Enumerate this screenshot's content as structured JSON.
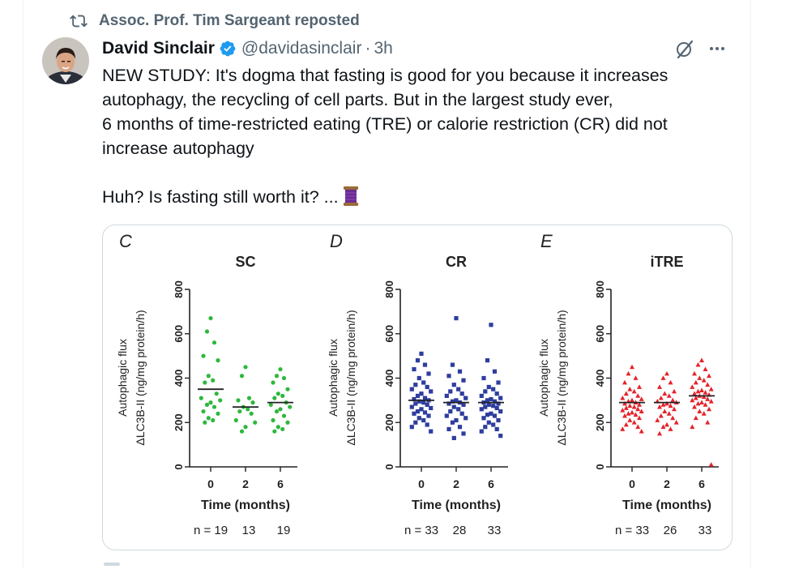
{
  "repost_label": "Assoc. Prof. Tim Sargeant reposted",
  "author": {
    "name": "David Sinclair",
    "handle": "@davidasinclair",
    "separator": "·",
    "time": "3h"
  },
  "tweet": {
    "text": "NEW STUDY: It's dogma that fasting is good for you because it increases autophagy, the recycling of cell parts. But in the largest study ever,\n6 months of time-restricted eating (TRE) or calorie restriction (CR) did not increase autophagy\n\nHuh? Is fasting still worth it? ..."
  },
  "icons": {
    "repost": "repost-icon",
    "verified": "verified-badge-icon",
    "grok": "grok-icon",
    "more": "more-icon",
    "thread": "spool-icon"
  },
  "colors": {
    "verified": "#1d9bf0",
    "sc": "#2db83d",
    "cr": "#2e3d9e",
    "itre": "#e5232b"
  },
  "chart_data": [
    {
      "panel": "C",
      "title": "SC",
      "type": "scatter",
      "ylabel_line1": "Autophagic flux",
      "ylabel_line2": "ΔLC3B-II (ng/mg protein/h)",
      "xlabel": "Time (months)",
      "x_ticks": [
        "0",
        "2",
        "6"
      ],
      "y_ticks": [
        "0",
        "200",
        "400",
        "600",
        "800"
      ],
      "ylim": [
        0,
        800
      ],
      "n_label": "n = 19",
      "n_values": [
        "13",
        "19"
      ],
      "color_key": "sc",
      "groups": [
        {
          "x": "0",
          "mean": 350,
          "values": [
            670,
            610,
            560,
            500,
            480,
            410,
            390,
            380,
            330,
            310,
            300,
            290,
            280,
            270,
            250,
            240,
            220,
            210,
            200
          ]
        },
        {
          "x": "2",
          "mean": 270,
          "values": [
            450,
            410,
            310,
            300,
            290,
            270,
            260,
            250,
            240,
            210,
            200,
            180,
            160
          ]
        },
        {
          "x": "6",
          "mean": 290,
          "values": [
            440,
            410,
            400,
            380,
            350,
            330,
            320,
            310,
            290,
            280,
            270,
            260,
            250,
            230,
            210,
            200,
            180,
            170,
            160
          ]
        }
      ]
    },
    {
      "panel": "D",
      "title": "CR",
      "type": "scatter",
      "ylabel_line1": "Autophagic flux",
      "ylabel_line2": "ΔLC3B-II (ng/mg protein/h)",
      "xlabel": "Time (months)",
      "x_ticks": [
        "0",
        "2",
        "6"
      ],
      "y_ticks": [
        "0",
        "200",
        "400",
        "600",
        "800"
      ],
      "ylim": [
        0,
        800
      ],
      "n_label": "n = 33",
      "n_values": [
        "28",
        "33"
      ],
      "color_key": "cr",
      "groups": [
        {
          "x": "0",
          "mean": 300,
          "values": [
            510,
            480,
            460,
            440,
            420,
            400,
            380,
            370,
            360,
            350,
            340,
            330,
            320,
            310,
            305,
            300,
            295,
            290,
            285,
            280,
            270,
            265,
            260,
            250,
            245,
            240,
            230,
            220,
            210,
            200,
            190,
            180,
            160
          ]
        },
        {
          "x": "2",
          "mean": 290,
          "values": [
            670,
            460,
            430,
            410,
            390,
            370,
            350,
            340,
            330,
            320,
            310,
            300,
            295,
            290,
            285,
            280,
            270,
            260,
            250,
            240,
            230,
            220,
            210,
            200,
            180,
            170,
            150,
            130
          ]
        },
        {
          "x": "6",
          "mean": 290,
          "values": [
            640,
            480,
            430,
            400,
            380,
            360,
            350,
            340,
            330,
            320,
            310,
            305,
            300,
            295,
            290,
            285,
            280,
            275,
            270,
            265,
            260,
            250,
            240,
            235,
            230,
            220,
            210,
            200,
            190,
            180,
            170,
            160,
            140
          ]
        }
      ]
    },
    {
      "panel": "E",
      "title": "iTRE",
      "type": "scatter",
      "ylabel_line1": "Autophagic flux",
      "ylabel_line2": "ΔLC3B-II (ng/mg protein/h)",
      "xlabel": "Time (months)",
      "x_ticks": [
        "0",
        "2",
        "6"
      ],
      "y_ticks": [
        "0",
        "200",
        "400",
        "600",
        "800"
      ],
      "ylim": [
        0,
        800
      ],
      "n_label": "n = 33",
      "n_values": [
        "26",
        "33"
      ],
      "color_key": "itre",
      "groups": [
        {
          "x": "0",
          "mean": 290,
          "values": [
            450,
            420,
            400,
            380,
            360,
            350,
            340,
            330,
            320,
            310,
            305,
            300,
            295,
            290,
            285,
            280,
            275,
            270,
            265,
            260,
            255,
            250,
            245,
            240,
            235,
            230,
            220,
            210,
            200,
            190,
            180,
            170,
            160
          ]
        },
        {
          "x": "2",
          "mean": 290,
          "values": [
            420,
            400,
            380,
            360,
            340,
            330,
            320,
            310,
            300,
            295,
            290,
            285,
            280,
            275,
            270,
            260,
            250,
            240,
            230,
            220,
            210,
            200,
            190,
            180,
            170,
            150
          ]
        },
        {
          "x": "6",
          "mean": 320,
          "values": [
            480,
            460,
            440,
            420,
            410,
            400,
            390,
            380,
            370,
            360,
            350,
            345,
            340,
            335,
            330,
            325,
            320,
            315,
            310,
            305,
            300,
            295,
            290,
            285,
            280,
            270,
            260,
            250,
            240,
            220,
            200,
            180,
            10
          ]
        }
      ]
    }
  ]
}
